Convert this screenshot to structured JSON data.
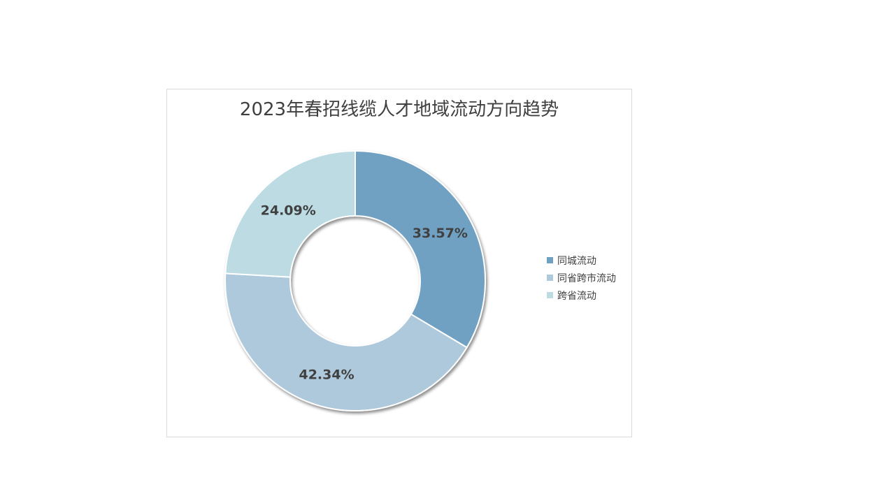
{
  "chart_data": {
    "type": "pie",
    "variant": "donut",
    "title": "2023年春招线缆人才地域流动方向趋势",
    "categories": [
      "同城流动",
      "同省跨市流动",
      "跨省流动"
    ],
    "values": [
      33.57,
      42.34,
      24.09
    ],
    "labels": [
      "33.57%",
      "42.34%",
      "24.09%"
    ],
    "colors": [
      "#6fa1c3",
      "#aec8dc",
      "#bcdbe3"
    ],
    "legend_position": "right"
  }
}
